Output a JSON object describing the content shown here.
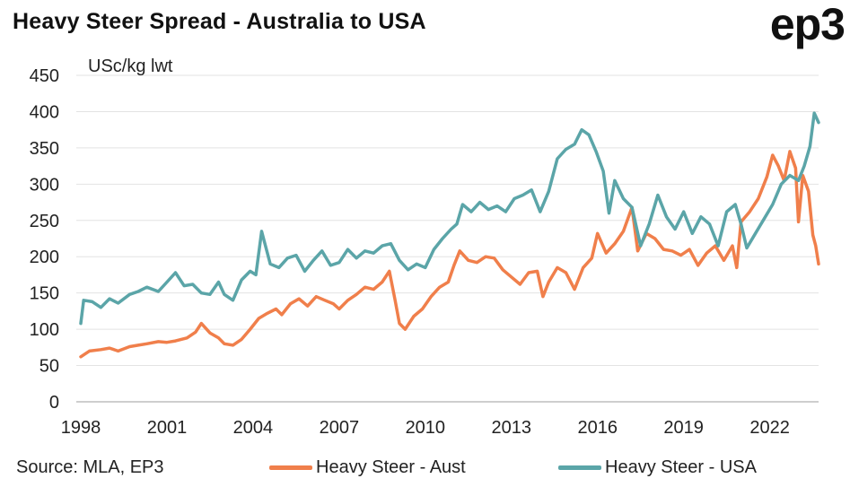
{
  "chart_data": {
    "type": "line",
    "title": "Heavy Steer Spread - Australia to USA",
    "ylabel": "USc/kg lwt",
    "ylim": [
      0,
      450
    ],
    "yticks": [
      0,
      50,
      100,
      150,
      200,
      250,
      300,
      350,
      400,
      450
    ],
    "xlim": [
      1998,
      2023.7
    ],
    "xticks": [
      "1998",
      "2001",
      "2004",
      "2007",
      "2010",
      "2013",
      "2016",
      "2019",
      "2022"
    ],
    "grid": "horizontal",
    "legend_position": "bottom",
    "series": [
      {
        "name": "Heavy Steer - Aust",
        "color": "#F07F4B",
        "points": [
          [
            1998.0,
            62
          ],
          [
            1998.3,
            70
          ],
          [
            1998.7,
            72
          ],
          [
            1999.0,
            74
          ],
          [
            1999.3,
            70
          ],
          [
            1999.7,
            76
          ],
          [
            2000.0,
            78
          ],
          [
            2000.3,
            80
          ],
          [
            2000.7,
            83
          ],
          [
            2001.0,
            82
          ],
          [
            2001.3,
            84
          ],
          [
            2001.7,
            88
          ],
          [
            2002.0,
            96
          ],
          [
            2002.2,
            108
          ],
          [
            2002.5,
            95
          ],
          [
            2002.8,
            88
          ],
          [
            2003.0,
            80
          ],
          [
            2003.3,
            78
          ],
          [
            2003.6,
            86
          ],
          [
            2003.9,
            100
          ],
          [
            2004.2,
            115
          ],
          [
            2004.5,
            122
          ],
          [
            2004.8,
            128
          ],
          [
            2005.0,
            120
          ],
          [
            2005.3,
            135
          ],
          [
            2005.6,
            142
          ],
          [
            2005.9,
            132
          ],
          [
            2006.2,
            145
          ],
          [
            2006.5,
            140
          ],
          [
            2006.8,
            135
          ],
          [
            2007.0,
            128
          ],
          [
            2007.3,
            140
          ],
          [
            2007.6,
            148
          ],
          [
            2007.9,
            158
          ],
          [
            2008.2,
            155
          ],
          [
            2008.5,
            165
          ],
          [
            2008.75,
            180
          ],
          [
            2008.95,
            140
          ],
          [
            2009.1,
            108
          ],
          [
            2009.3,
            100
          ],
          [
            2009.6,
            118
          ],
          [
            2009.9,
            128
          ],
          [
            2010.2,
            145
          ],
          [
            2010.5,
            158
          ],
          [
            2010.8,
            165
          ],
          [
            2011.0,
            188
          ],
          [
            2011.2,
            208
          ],
          [
            2011.5,
            195
          ],
          [
            2011.8,
            192
          ],
          [
            2012.1,
            200
          ],
          [
            2012.4,
            198
          ],
          [
            2012.7,
            182
          ],
          [
            2013.0,
            172
          ],
          [
            2013.3,
            162
          ],
          [
            2013.6,
            178
          ],
          [
            2013.9,
            180
          ],
          [
            2014.1,
            145
          ],
          [
            2014.3,
            165
          ],
          [
            2014.6,
            185
          ],
          [
            2014.9,
            178
          ],
          [
            2015.2,
            155
          ],
          [
            2015.5,
            185
          ],
          [
            2015.8,
            198
          ],
          [
            2016.0,
            232
          ],
          [
            2016.3,
            205
          ],
          [
            2016.6,
            218
          ],
          [
            2016.9,
            235
          ],
          [
            2017.2,
            268
          ],
          [
            2017.4,
            208
          ],
          [
            2017.7,
            232
          ],
          [
            2018.0,
            225
          ],
          [
            2018.3,
            210
          ],
          [
            2018.6,
            208
          ],
          [
            2018.9,
            202
          ],
          [
            2019.2,
            210
          ],
          [
            2019.5,
            188
          ],
          [
            2019.8,
            205
          ],
          [
            2020.1,
            215
          ],
          [
            2020.4,
            195
          ],
          [
            2020.7,
            215
          ],
          [
            2020.85,
            185
          ],
          [
            2021.0,
            248
          ],
          [
            2021.3,
            262
          ],
          [
            2021.6,
            280
          ],
          [
            2021.9,
            310
          ],
          [
            2022.1,
            340
          ],
          [
            2022.3,
            325
          ],
          [
            2022.5,
            305
          ],
          [
            2022.7,
            345
          ],
          [
            2022.9,
            322
          ],
          [
            2023.0,
            248
          ],
          [
            2023.15,
            312
          ],
          [
            2023.35,
            290
          ],
          [
            2023.5,
            230
          ],
          [
            2023.6,
            215
          ],
          [
            2023.7,
            190
          ]
        ]
      },
      {
        "name": "Heavy Steer - USA",
        "color": "#5BA5A8",
        "points": [
          [
            1998.0,
            108
          ],
          [
            1998.1,
            140
          ],
          [
            1998.4,
            138
          ],
          [
            1998.7,
            130
          ],
          [
            1999.0,
            142
          ],
          [
            1999.3,
            136
          ],
          [
            1999.7,
            148
          ],
          [
            2000.0,
            152
          ],
          [
            2000.3,
            158
          ],
          [
            2000.7,
            152
          ],
          [
            2001.0,
            165
          ],
          [
            2001.3,
            178
          ],
          [
            2001.6,
            160
          ],
          [
            2001.9,
            162
          ],
          [
            2002.2,
            150
          ],
          [
            2002.5,
            148
          ],
          [
            2002.8,
            165
          ],
          [
            2003.0,
            148
          ],
          [
            2003.3,
            140
          ],
          [
            2003.6,
            168
          ],
          [
            2003.9,
            180
          ],
          [
            2004.1,
            175
          ],
          [
            2004.3,
            235
          ],
          [
            2004.6,
            190
          ],
          [
            2004.9,
            185
          ],
          [
            2005.2,
            198
          ],
          [
            2005.5,
            202
          ],
          [
            2005.8,
            180
          ],
          [
            2006.1,
            195
          ],
          [
            2006.4,
            208
          ],
          [
            2006.7,
            188
          ],
          [
            2007.0,
            192
          ],
          [
            2007.3,
            210
          ],
          [
            2007.6,
            198
          ],
          [
            2007.9,
            208
          ],
          [
            2008.2,
            205
          ],
          [
            2008.5,
            215
          ],
          [
            2008.8,
            218
          ],
          [
            2009.1,
            195
          ],
          [
            2009.4,
            182
          ],
          [
            2009.7,
            190
          ],
          [
            2010.0,
            185
          ],
          [
            2010.3,
            210
          ],
          [
            2010.6,
            225
          ],
          [
            2010.9,
            238
          ],
          [
            2011.1,
            245
          ],
          [
            2011.3,
            272
          ],
          [
            2011.6,
            262
          ],
          [
            2011.9,
            275
          ],
          [
            2012.2,
            265
          ],
          [
            2012.5,
            270
          ],
          [
            2012.8,
            262
          ],
          [
            2013.1,
            280
          ],
          [
            2013.4,
            285
          ],
          [
            2013.7,
            292
          ],
          [
            2014.0,
            262
          ],
          [
            2014.3,
            290
          ],
          [
            2014.6,
            335
          ],
          [
            2014.9,
            348
          ],
          [
            2015.2,
            355
          ],
          [
            2015.45,
            375
          ],
          [
            2015.7,
            368
          ],
          [
            2015.95,
            345
          ],
          [
            2016.2,
            318
          ],
          [
            2016.4,
            260
          ],
          [
            2016.6,
            305
          ],
          [
            2016.9,
            280
          ],
          [
            2017.2,
            268
          ],
          [
            2017.5,
            215
          ],
          [
            2017.8,
            245
          ],
          [
            2018.1,
            285
          ],
          [
            2018.4,
            255
          ],
          [
            2018.7,
            238
          ],
          [
            2019.0,
            262
          ],
          [
            2019.3,
            232
          ],
          [
            2019.6,
            255
          ],
          [
            2019.9,
            245
          ],
          [
            2020.2,
            215
          ],
          [
            2020.5,
            262
          ],
          [
            2020.8,
            272
          ],
          [
            2021.0,
            245
          ],
          [
            2021.2,
            212
          ],
          [
            2021.5,
            232
          ],
          [
            2021.8,
            252
          ],
          [
            2022.1,
            272
          ],
          [
            2022.4,
            300
          ],
          [
            2022.7,
            312
          ],
          [
            2023.0,
            305
          ],
          [
            2023.2,
            325
          ],
          [
            2023.4,
            352
          ],
          [
            2023.55,
            398
          ],
          [
            2023.7,
            385
          ]
        ]
      }
    ]
  },
  "source": "Source: MLA, EP3",
  "brand": "ep3"
}
